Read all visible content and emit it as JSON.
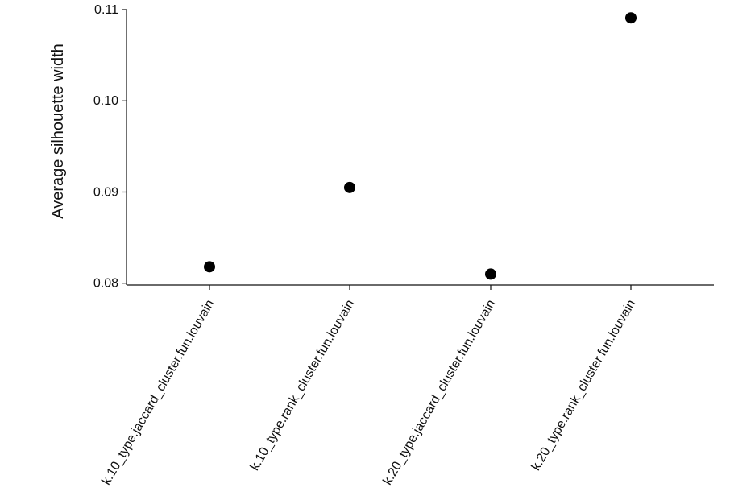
{
  "chart_data": {
    "type": "scatter",
    "title": "",
    "xlabel": "",
    "ylabel": "Average silhouette width",
    "categories": [
      "k.10_type.jaccard_cluster.fun.louvain",
      "k.10_type.rank_cluster.fun.louvain",
      "k.20_type.jaccard_cluster.fun.louvain",
      "k.20_type.rank_cluster.fun.louvain"
    ],
    "values": [
      0.0818,
      0.0905,
      0.081,
      0.1091
    ],
    "yticks": [
      0.08,
      0.09,
      0.1,
      0.11
    ],
    "ytick_labels": [
      "0.08",
      "0.09",
      "0.10",
      "0.11"
    ],
    "ylim": [
      0.0798,
      0.11
    ],
    "grid": false,
    "marker_color": "#000000"
  }
}
